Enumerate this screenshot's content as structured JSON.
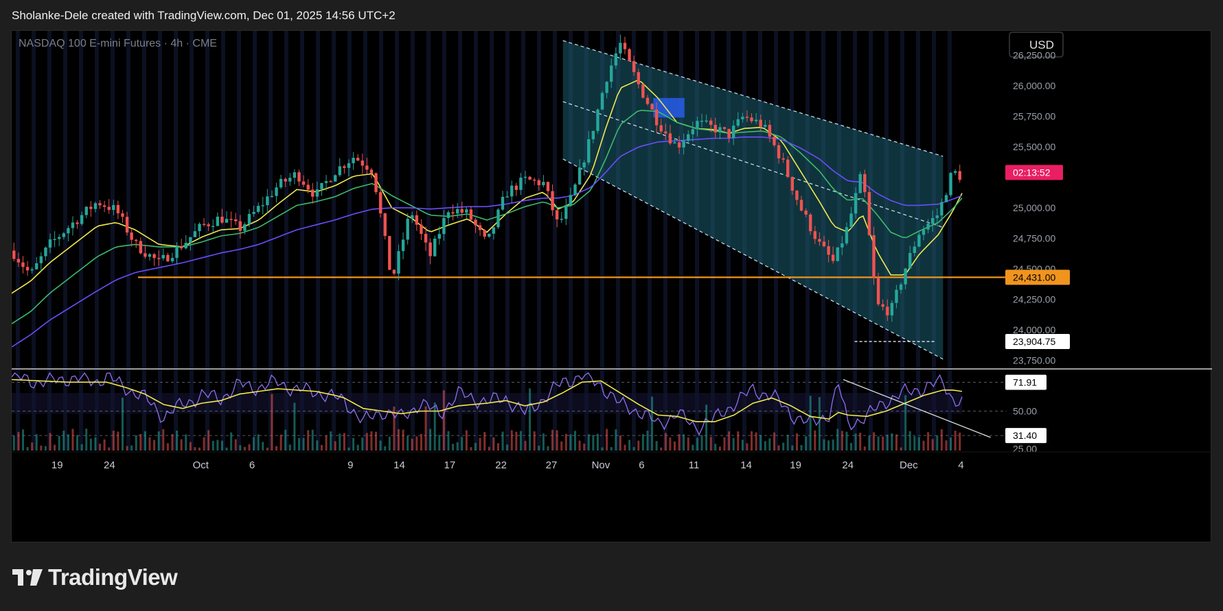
{
  "header": {
    "caption": "Sholanke-Dele created with TradingView.com, Dec 01, 2025 14:56 UTC+2"
  },
  "chart_data": {
    "type": "candlestick",
    "title": "NASDAQ 100 E-mini Futures · 4h · CME",
    "currency": "USD",
    "price_axis": {
      "ticks": [
        26250,
        26000,
        25750,
        25500,
        25000,
        24750,
        24500,
        24250,
        24000,
        23750
      ],
      "tick_labels": [
        "26,250.00",
        "26,000.00",
        "25,750.00",
        "25,500.00",
        "25,000.00",
        "24,750.00",
        "24,500.00",
        "24,250.00",
        "24,000.00",
        "23,750.00"
      ],
      "range": [
        23680,
        26450
      ]
    },
    "time_axis": {
      "labels": [
        "19",
        "24",
        "Oct",
        "6",
        "9",
        "14",
        "17",
        "22",
        "27",
        "Nov",
        "6",
        "11",
        "14",
        "19",
        "24",
        "Dec",
        "4"
      ],
      "label_x": [
        0.045,
        0.1,
        0.196,
        0.25,
        0.3535,
        0.405,
        0.458,
        0.512,
        0.565,
        0.617,
        0.66,
        0.715,
        0.77,
        0.822,
        0.877,
        0.941,
        0.996
      ]
    },
    "price_series": {
      "x": [
        0.0,
        0.02,
        0.04,
        0.065,
        0.09,
        0.11,
        0.13,
        0.155,
        0.18,
        0.2,
        0.22,
        0.24,
        0.26,
        0.28,
        0.3,
        0.32,
        0.34,
        0.36,
        0.38,
        0.4,
        0.42,
        0.44,
        0.46,
        0.48,
        0.5,
        0.52,
        0.54,
        0.56,
        0.575,
        0.59,
        0.61,
        0.625,
        0.64,
        0.66,
        0.68,
        0.7,
        0.72,
        0.74,
        0.755,
        0.77,
        0.79,
        0.81,
        0.83,
        0.85,
        0.865,
        0.88,
        0.895,
        0.91,
        0.925,
        0.94,
        0.955,
        0.975,
        0.99,
        1.0
      ],
      "close": [
        24650,
        24450,
        24700,
        24880,
        25050,
        24980,
        24700,
        24550,
        24700,
        24850,
        24920,
        24830,
        25000,
        25180,
        25280,
        25100,
        25300,
        25420,
        25310,
        24400,
        24980,
        24600,
        25000,
        24950,
        24700,
        25120,
        25230,
        25200,
        24850,
        25100,
        25600,
        26050,
        26350,
        26000,
        25700,
        25500,
        25700,
        25650,
        25600,
        25750,
        25680,
        25400,
        25000,
        24700,
        24550,
        24850,
        25300,
        24200,
        24150,
        24500,
        24800,
        24950,
        25300,
        25250
      ]
    },
    "ma_series": [
      {
        "color": "#f2e94e",
        "values": [
          24300,
          24400,
          24550,
          24700,
          24850,
          24880,
          24820,
          24700,
          24680,
          24760,
          24820,
          24830,
          24900,
          25030,
          25150,
          25130,
          25180,
          25260,
          25280,
          25000,
          24920,
          24800,
          24860,
          24910,
          24800,
          24950,
          25080,
          25130,
          24990,
          25040,
          25280,
          25650,
          25980,
          26050,
          25900,
          25700,
          25650,
          25640,
          25610,
          25650,
          25660,
          25550,
          25300,
          25050,
          24850,
          24800,
          24950,
          24650,
          24450,
          24450,
          24620,
          24780,
          24970,
          25120
        ]
      },
      {
        "color": "#3dbb6c",
        "values": [
          24050,
          24150,
          24300,
          24450,
          24600,
          24680,
          24700,
          24680,
          24680,
          24720,
          24770,
          24790,
          24840,
          24930,
          25020,
          25050,
          25090,
          25160,
          25200,
          25100,
          25020,
          24940,
          24930,
          24950,
          24900,
          24950,
          25010,
          25050,
          25000,
          25020,
          25150,
          25400,
          25680,
          25800,
          25790,
          25700,
          25650,
          25630,
          25610,
          25620,
          25630,
          25580,
          25450,
          25300,
          25150,
          25060,
          25080,
          24950,
          24800,
          24750,
          24810,
          24880,
          24990,
          25080
        ]
      },
      {
        "color": "#6b4eff",
        "values": [
          23860,
          23960,
          24080,
          24200,
          24320,
          24410,
          24470,
          24510,
          24550,
          24590,
          24630,
          24660,
          24700,
          24760,
          24820,
          24860,
          24900,
          24950,
          24990,
          25000,
          25000,
          24990,
          25000,
          25010,
          25010,
          25030,
          25060,
          25080,
          25080,
          25100,
          25170,
          25290,
          25420,
          25500,
          25540,
          25550,
          25560,
          25570,
          25570,
          25580,
          25580,
          25560,
          25490,
          25400,
          25300,
          25220,
          25210,
          25120,
          25060,
          25020,
          25020,
          25030,
          25070,
          25100
        ]
      }
    ],
    "levels": {
      "support": {
        "value": 24431,
        "label": "24,431.00",
        "color": "#f0941e"
      },
      "low_marker": {
        "value": 23904.75,
        "label": "23,904.75"
      },
      "countdown": {
        "label": "02:13:52",
        "color": "#e91e63"
      }
    },
    "channel": {
      "upper": [
        [
          0.58,
          26370
        ],
        [
          0.945,
          25505
        ]
      ],
      "middle": [
        [
          0.58,
          25870
        ],
        [
          0.98,
          24840
        ]
      ],
      "lower": [
        [
          0.58,
          25400
        ],
        [
          0.98,
          23760
        ]
      ]
    },
    "highlight_box": {
      "x0": 0.675,
      "x1": 0.708,
      "y0": 25740,
      "y1": 25900,
      "color": "#2962ff"
    },
    "rsi": {
      "ticks": [
        71.91,
        50.0,
        31.4
      ],
      "tick_labels": [
        "71.91",
        "50.00",
        "31.40"
      ],
      "bottom_label": "25.00",
      "range": [
        20,
        80
      ],
      "x": [
        0.0,
        0.03,
        0.06,
        0.09,
        0.1,
        0.12,
        0.14,
        0.16,
        0.18,
        0.2,
        0.22,
        0.24,
        0.26,
        0.28,
        0.3,
        0.32,
        0.34,
        0.35,
        0.37,
        0.39,
        0.41,
        0.43,
        0.45,
        0.47,
        0.5,
        0.52,
        0.54,
        0.56,
        0.58,
        0.6,
        0.62,
        0.64,
        0.66,
        0.68,
        0.7,
        0.72,
        0.74,
        0.76,
        0.78,
        0.8,
        0.82,
        0.84,
        0.86,
        0.87,
        0.88,
        0.9,
        0.92,
        0.94,
        0.96,
        0.98,
        0.99,
        1.0
      ],
      "values": [
        76,
        72,
        75,
        73,
        76,
        68,
        60,
        46,
        55,
        62,
        60,
        70,
        68,
        72,
        66,
        65,
        60,
        58,
        42,
        50,
        45,
        56,
        48,
        63,
        57,
        60,
        48,
        60,
        72,
        77,
        70,
        55,
        50,
        40,
        48,
        38,
        44,
        56,
        66,
        62,
        48,
        40,
        48,
        70,
        40,
        46,
        58,
        64,
        68,
        72,
        60,
        56
      ],
      "signal": [
        74,
        73,
        72,
        72,
        72,
        68,
        63,
        55,
        52,
        56,
        58,
        63,
        65,
        67,
        66,
        65,
        62,
        60,
        52,
        50,
        48,
        50,
        50,
        54,
        56,
        58,
        54,
        57,
        64,
        72,
        73,
        64,
        55,
        47,
        46,
        42,
        42,
        47,
        56,
        60,
        54,
        46,
        44,
        49,
        47,
        46,
        50,
        56,
        62,
        66,
        66,
        65
      ],
      "trendline": [
        [
          0.875,
          74
        ],
        [
          1.03,
          30
        ]
      ]
    },
    "background_grid": false
  }
}
